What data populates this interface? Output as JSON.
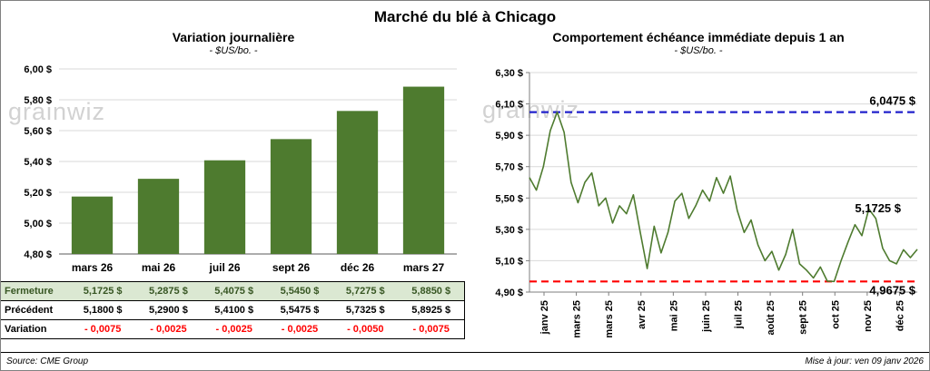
{
  "title": "Marché du blé à Chicago",
  "watermark": "grainwiz",
  "footer": {
    "source": "Source: CME Group",
    "updated": "Mise à jour: ven 09 janv 2026"
  },
  "colors": {
    "green": "#4e7b2f",
    "grid": "#d9d9d9",
    "axis": "#7f7f7f",
    "blue": "#2222cc",
    "red": "#ff0000",
    "table_green_bg": "#dbe8d2",
    "table_green_text": "#375623"
  },
  "chart_data": [
    {
      "type": "bar",
      "title": "Variation journalière",
      "subtitle": "- $US/bo. -",
      "categories": [
        "mars 26",
        "mai 26",
        "juil 26",
        "sept 26",
        "déc 26",
        "mars 27"
      ],
      "values": [
        5.1725,
        5.2875,
        5.4075,
        5.545,
        5.7275,
        5.885
      ],
      "ylim": [
        4.8,
        6.0
      ],
      "ytick_step": 0.2,
      "ytick_labels": [
        "4,80 $",
        "5,00 $",
        "5,20 $",
        "5,40 $",
        "5,60 $",
        "5,80 $",
        "6,00 $"
      ],
      "grid": true,
      "legend": false
    },
    {
      "type": "line",
      "title": "Comportement échéance immédiate depuis 1 an",
      "subtitle": "- $US/bo. -",
      "x_labels": [
        "janv 25",
        "mars 25",
        "mars 25",
        "avr 25",
        "mai 25",
        "juin 25",
        "juil 25",
        "août 25",
        "sept 25",
        "oct 25",
        "nov 25",
        "déc 25"
      ],
      "ylim": [
        4.9,
        6.3
      ],
      "ytick_labels": [
        "4,90 $",
        "5,10 $",
        "5,30 $",
        "5,50 $",
        "5,70 $",
        "5,90 $",
        "6,10 $",
        "6,30 $"
      ],
      "max_line": {
        "value": 6.0475,
        "label": "6,0475 $"
      },
      "min_line": {
        "value": 4.9675,
        "label": "4,9675 $"
      },
      "last_value": 5.1725,
      "last_label": "5,1725 $",
      "values": [
        5.63,
        5.55,
        5.7,
        5.93,
        6.0475,
        5.92,
        5.6,
        5.47,
        5.6,
        5.66,
        5.45,
        5.5,
        5.34,
        5.45,
        5.4,
        5.52,
        5.28,
        5.05,
        5.32,
        5.15,
        5.28,
        5.48,
        5.53,
        5.37,
        5.45,
        5.55,
        5.48,
        5.63,
        5.53,
        5.64,
        5.42,
        5.28,
        5.36,
        5.2,
        5.1,
        5.16,
        5.04,
        5.14,
        5.3,
        5.08,
        5.04,
        4.99,
        5.06,
        4.97,
        4.9675,
        5.1,
        5.22,
        5.33,
        5.26,
        5.43,
        5.37,
        5.18,
        5.1,
        5.08,
        5.17,
        5.12,
        5.1725
      ],
      "grid": true,
      "legend": false
    }
  ],
  "table": {
    "rows": [
      {
        "key": "fermeture",
        "label": "Fermeture",
        "style": "close",
        "values": [
          "5,1725 $",
          "5,2875 $",
          "5,4075 $",
          "5,5450 $",
          "5,7275 $",
          "5,8850 $"
        ]
      },
      {
        "key": "precedent",
        "label": "Précédent",
        "style": "prev",
        "values": [
          "5,1800 $",
          "5,2900 $",
          "5,4100 $",
          "5,5475 $",
          "5,7325 $",
          "5,8925 $"
        ]
      },
      {
        "key": "variation",
        "label": "Variation",
        "style": "neg",
        "values": [
          "- 0,0075",
          "- 0,0025",
          "- 0,0025",
          "- 0,0025",
          "- 0,0050",
          "- 0,0075"
        ]
      }
    ]
  }
}
